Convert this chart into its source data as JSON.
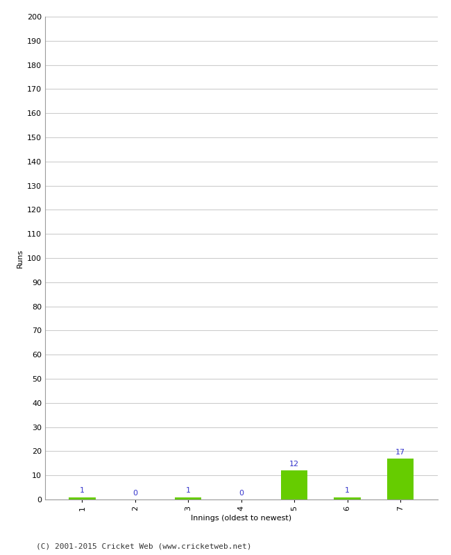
{
  "categories": [
    "1",
    "2",
    "3",
    "4",
    "5",
    "6",
    "7"
  ],
  "values": [
    1,
    0,
    1,
    0,
    12,
    1,
    17
  ],
  "bar_color": "#66cc00",
  "xlabel": "Innings (oldest to newest)",
  "ylabel": "Runs",
  "ylim": [
    0,
    200
  ],
  "yticks": [
    0,
    10,
    20,
    30,
    40,
    50,
    60,
    70,
    80,
    90,
    100,
    110,
    120,
    130,
    140,
    150,
    160,
    170,
    180,
    190,
    200
  ],
  "label_color": "#3333cc",
  "label_fontsize": 8,
  "axis_label_fontsize": 8,
  "tick_fontsize": 8,
  "footer": "(C) 2001-2015 Cricket Web (www.cricketweb.net)",
  "background_color": "#ffffff",
  "grid_color": "#cccccc",
  "bar_width": 0.5
}
